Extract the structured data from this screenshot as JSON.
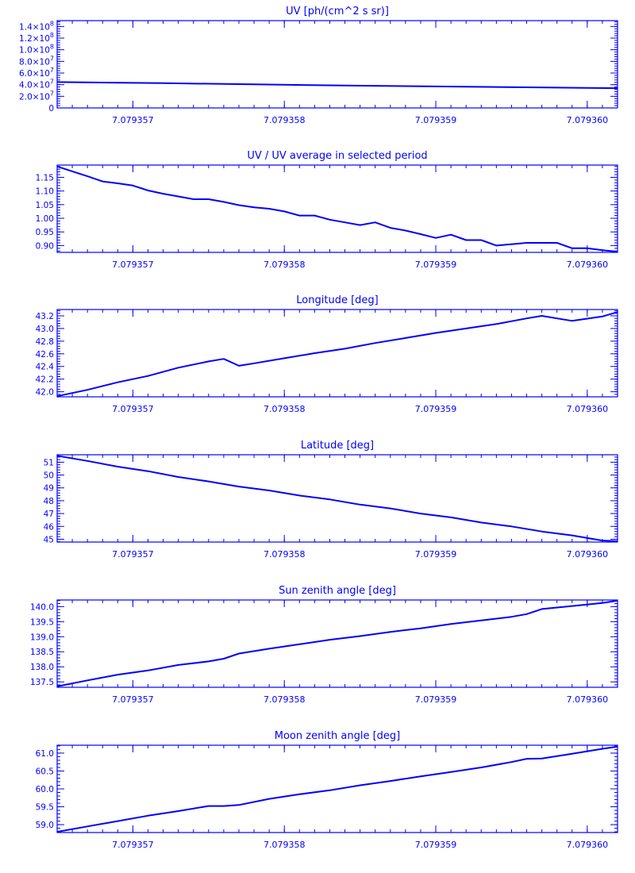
{
  "colors": {
    "ink": "#0000ff",
    "background": "#ffffff"
  },
  "chart_data": [
    {
      "type": "line",
      "title": "UV [ph/(cm^2 s sr)]",
      "xlim": [
        7.0793565,
        7.0793602
      ],
      "xticks": [
        7.079357,
        7.079358,
        7.079359,
        7.07936
      ],
      "xtick_labels": [
        "7.079357",
        "7.079358",
        "7.079359",
        "7.079360"
      ],
      "ylim": [
        0,
        150000000.0
      ],
      "yticks": [
        0,
        20000000.0,
        40000000.0,
        60000000.0,
        80000000.0,
        100000000.0,
        120000000.0,
        140000000.0
      ],
      "ytick_labels": [
        {
          "mant": "0",
          "exp": ""
        },
        {
          "mant": "2.0×10",
          "exp": "7"
        },
        {
          "mant": "4.0×10",
          "exp": "7"
        },
        {
          "mant": "6.0×10",
          "exp": "7"
        },
        {
          "mant": "8.0×10",
          "exp": "7"
        },
        {
          "mant": "1.0×10",
          "exp": "8"
        },
        {
          "mant": "1.2×10",
          "exp": "8"
        },
        {
          "mant": "1.4×10",
          "exp": "8"
        }
      ],
      "x": [
        7.0793565,
        7.0793572,
        7.0793578,
        7.0793584,
        7.079359,
        7.0793596,
        7.0793602
      ],
      "y": [
        44500000,
        42500000,
        40500000,
        38500000,
        37000000,
        35500000,
        34000000
      ],
      "grid": false
    },
    {
      "type": "line",
      "title": "UV / UV average in selected period",
      "xlim": [
        7.0793565,
        7.0793602
      ],
      "xticks": [
        7.079357,
        7.079358,
        7.079359,
        7.07936
      ],
      "xtick_labels": [
        "7.079357",
        "7.079358",
        "7.079359",
        "7.079360"
      ],
      "ylim": [
        0.875,
        1.195
      ],
      "yticks": [
        0.9,
        0.95,
        1.0,
        1.05,
        1.1,
        1.15
      ],
      "ytick_labels": [
        {
          "mant": "0.90",
          "exp": ""
        },
        {
          "mant": "0.95",
          "exp": ""
        },
        {
          "mant": "1.00",
          "exp": ""
        },
        {
          "mant": "1.05",
          "exp": ""
        },
        {
          "mant": "1.10",
          "exp": ""
        },
        {
          "mant": "1.15",
          "exp": ""
        }
      ],
      "x": [
        7.0793565,
        7.0793566,
        7.0793567,
        7.0793568,
        7.0793569,
        7.079357,
        7.0793571,
        7.0793572,
        7.0793573,
        7.0793574,
        7.0793575,
        7.0793576,
        7.0793577,
        7.0793578,
        7.0793579,
        7.079358,
        7.0793581,
        7.0793582,
        7.0793583,
        7.0793584,
        7.0793585,
        7.0793586,
        7.0793587,
        7.0793588,
        7.0793589,
        7.079359,
        7.0793591,
        7.0793592,
        7.0793593,
        7.0793594,
        7.0793595,
        7.0793596,
        7.0793597,
        7.0793598,
        7.0793599,
        7.07936,
        7.0793601,
        7.0793602
      ],
      "y": [
        1.19,
        1.172,
        1.154,
        1.135,
        1.128,
        1.12,
        1.102,
        1.09,
        1.08,
        1.07,
        1.07,
        1.06,
        1.048,
        1.04,
        1.035,
        1.025,
        1.01,
        1.01,
        0.995,
        0.985,
        0.975,
        0.985,
        0.965,
        0.955,
        0.942,
        0.928,
        0.94,
        0.92,
        0.92,
        0.9,
        0.905,
        0.91,
        0.91,
        0.91,
        0.89,
        0.89,
        0.883,
        0.878
      ],
      "grid": false
    },
    {
      "type": "line",
      "title": "Longitude [deg]",
      "xlim": [
        7.0793565,
        7.0793602
      ],
      "xticks": [
        7.079357,
        7.079358,
        7.079359,
        7.07936
      ],
      "xtick_labels": [
        "7.079357",
        "7.079358",
        "7.079359",
        "7.079360"
      ],
      "ylim": [
        41.92,
        43.3
      ],
      "yticks": [
        42.0,
        42.2,
        42.4,
        42.6,
        42.8,
        43.0,
        43.2
      ],
      "ytick_labels": [
        {
          "mant": "42.0",
          "exp": ""
        },
        {
          "mant": "42.2",
          "exp": ""
        },
        {
          "mant": "42.4",
          "exp": ""
        },
        {
          "mant": "42.6",
          "exp": ""
        },
        {
          "mant": "42.8",
          "exp": ""
        },
        {
          "mant": "43.0",
          "exp": ""
        },
        {
          "mant": "43.2",
          "exp": ""
        }
      ],
      "x": [
        7.0793565,
        7.0793567,
        7.0793569,
        7.0793571,
        7.0793573,
        7.0793575,
        7.0793576,
        7.0793577,
        7.0793578,
        7.079358,
        7.0793582,
        7.0793584,
        7.0793586,
        7.0793588,
        7.079359,
        7.0793592,
        7.0793594,
        7.0793596,
        7.0793597,
        7.0793599,
        7.0793601,
        7.0793602
      ],
      "y": [
        41.93,
        42.03,
        42.15,
        42.25,
        42.38,
        42.48,
        42.52,
        42.41,
        42.45,
        42.53,
        42.61,
        42.68,
        42.77,
        42.85,
        42.93,
        43.0,
        43.07,
        43.16,
        43.2,
        43.12,
        43.19,
        43.26
      ],
      "grid": false
    },
    {
      "type": "line",
      "title": "Latitude [deg]",
      "xlim": [
        7.0793565,
        7.0793602
      ],
      "xticks": [
        7.079357,
        7.079358,
        7.079359,
        7.07936
      ],
      "xtick_labels": [
        "7.079357",
        "7.079358",
        "7.079359",
        "7.079360"
      ],
      "ylim": [
        44.78,
        51.58
      ],
      "yticks": [
        45,
        46,
        47,
        48,
        49,
        50,
        51
      ],
      "ytick_labels": [
        {
          "mant": "45",
          "exp": ""
        },
        {
          "mant": "46",
          "exp": ""
        },
        {
          "mant": "47",
          "exp": ""
        },
        {
          "mant": "48",
          "exp": ""
        },
        {
          "mant": "49",
          "exp": ""
        },
        {
          "mant": "50",
          "exp": ""
        },
        {
          "mant": "51",
          "exp": ""
        }
      ],
      "x": [
        7.0793565,
        7.0793567,
        7.0793569,
        7.0793571,
        7.0793573,
        7.0793575,
        7.0793577,
        7.0793579,
        7.0793581,
        7.0793583,
        7.0793585,
        7.0793587,
        7.0793589,
        7.0793591,
        7.0793593,
        7.0793595,
        7.0793597,
        7.0793599,
        7.0793601,
        7.0793602
      ],
      "y": [
        51.5,
        51.1,
        50.65,
        50.3,
        49.85,
        49.5,
        49.1,
        48.8,
        48.4,
        48.1,
        47.7,
        47.4,
        47.0,
        46.7,
        46.3,
        46.0,
        45.6,
        45.3,
        44.9,
        44.85
      ],
      "grid": false
    },
    {
      "type": "line",
      "title": "Sun zenith angle [deg]",
      "xlim": [
        7.0793565,
        7.0793602
      ],
      "xticks": [
        7.079357,
        7.079358,
        7.079359,
        7.07936
      ],
      "xtick_labels": [
        "7.079357",
        "7.079358",
        "7.079359",
        "7.079360"
      ],
      "ylim": [
        137.32,
        140.22
      ],
      "yticks": [
        137.5,
        138.0,
        138.5,
        139.0,
        139.5,
        140.0
      ],
      "ytick_labels": [
        {
          "mant": "137.5",
          "exp": ""
        },
        {
          "mant": "138.0",
          "exp": ""
        },
        {
          "mant": "138.5",
          "exp": ""
        },
        {
          "mant": "139.0",
          "exp": ""
        },
        {
          "mant": "139.5",
          "exp": ""
        },
        {
          "mant": "140.0",
          "exp": ""
        }
      ],
      "x": [
        7.0793565,
        7.0793567,
        7.0793569,
        7.0793571,
        7.0793573,
        7.0793575,
        7.0793576,
        7.0793577,
        7.0793579,
        7.0793581,
        7.0793583,
        7.0793585,
        7.0793587,
        7.0793589,
        7.0793591,
        7.0793593,
        7.0793595,
        7.0793596,
        7.0793597,
        7.0793599,
        7.0793601,
        7.0793602
      ],
      "y": [
        137.35,
        137.55,
        137.74,
        137.88,
        138.06,
        138.18,
        138.27,
        138.44,
        138.6,
        138.75,
        138.9,
        139.02,
        139.16,
        139.28,
        139.42,
        139.54,
        139.66,
        139.75,
        139.92,
        140.02,
        140.12,
        140.2
      ],
      "grid": false
    },
    {
      "type": "line",
      "title": "Moon zenith angle [deg]",
      "xlim": [
        7.0793565,
        7.0793602
      ],
      "xticks": [
        7.079357,
        7.079358,
        7.079359,
        7.07936
      ],
      "xtick_labels": [
        "7.079357",
        "7.079358",
        "7.079359",
        "7.079360"
      ],
      "ylim": [
        58.78,
        61.22
      ],
      "yticks": [
        59.0,
        59.5,
        60.0,
        60.5,
        61.0
      ],
      "ytick_labels": [
        {
          "mant": "59.0",
          "exp": ""
        },
        {
          "mant": "59.5",
          "exp": ""
        },
        {
          "mant": "60.0",
          "exp": ""
        },
        {
          "mant": "60.5",
          "exp": ""
        },
        {
          "mant": "61.0",
          "exp": ""
        }
      ],
      "x": [
        7.0793565,
        7.0793567,
        7.0793569,
        7.0793571,
        7.0793573,
        7.0793575,
        7.0793576,
        7.0793577,
        7.0793579,
        7.0793581,
        7.0793583,
        7.0793585,
        7.0793587,
        7.0793589,
        7.0793591,
        7.0793593,
        7.0793595,
        7.0793596,
        7.0793597,
        7.0793599,
        7.0793601,
        7.0793602
      ],
      "y": [
        58.8,
        58.95,
        59.1,
        59.25,
        59.38,
        59.52,
        59.52,
        59.55,
        59.72,
        59.85,
        59.96,
        60.1,
        60.22,
        60.35,
        60.47,
        60.6,
        60.75,
        60.84,
        60.85,
        60.98,
        61.12,
        61.18
      ],
      "grid": false
    }
  ]
}
